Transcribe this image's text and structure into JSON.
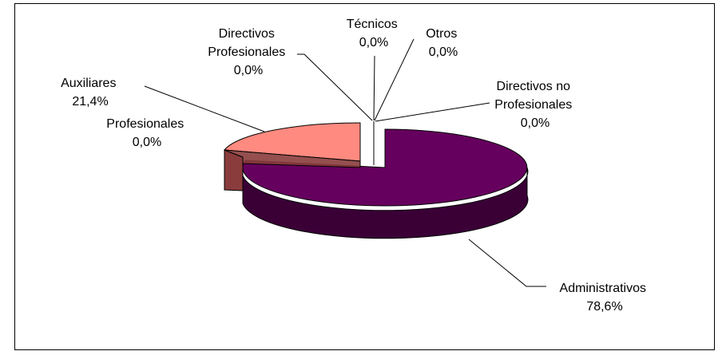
{
  "chart_data": {
    "type": "pie",
    "style": "3d-exploded",
    "title": "",
    "slices": [
      {
        "name": "Administrativos",
        "value": 78.6,
        "value_label": "78,6%",
        "color": "#66005e",
        "side_color": "#3a0036"
      },
      {
        "name": "Auxiliares",
        "value": 21.4,
        "value_label": "21,4%",
        "color": "#ff8a80",
        "side_color": "#8a3c3c"
      },
      {
        "name": "Profesionales",
        "value": 0.0,
        "value_label": "0,0%",
        "color": "#ffffff",
        "side_color": "#ffffff"
      },
      {
        "name": "Directivos Profesionales",
        "value": 0.0,
        "value_label": "0,0%",
        "color": "#ffffff",
        "side_color": "#ffffff"
      },
      {
        "name": "Técnicos",
        "value": 0.0,
        "value_label": "0,0%",
        "color": "#ffffff",
        "side_color": "#ffffff"
      },
      {
        "name": "Otros",
        "value": 0.0,
        "value_label": "0,0%",
        "color": "#ffffff",
        "side_color": "#ffffff"
      },
      {
        "name": "Directivos no Profesionales",
        "value": 0.0,
        "value_label": "0,0%",
        "color": "#ffffff",
        "side_color": "#ffffff"
      }
    ],
    "labels": {
      "administrativos": {
        "lines": [
          "Administrativos",
          "78,6%"
        ]
      },
      "auxiliares": {
        "lines": [
          "Auxiliares",
          "21,4%"
        ]
      },
      "profesionales": {
        "lines": [
          "Profesionales",
          "0,0%"
        ]
      },
      "directivos_profesionales": {
        "lines": [
          "Directivos",
          "Profesionales",
          "0,0%"
        ]
      },
      "tecnicos": {
        "lines": [
          "Técnicos",
          "0,0%"
        ]
      },
      "otros": {
        "lines": [
          "Otros",
          "0,0%"
        ]
      },
      "directivos_no_profesionales": {
        "lines": [
          "Directivos no",
          "Profesionales",
          "0,0%"
        ]
      }
    },
    "legend": "none"
  }
}
